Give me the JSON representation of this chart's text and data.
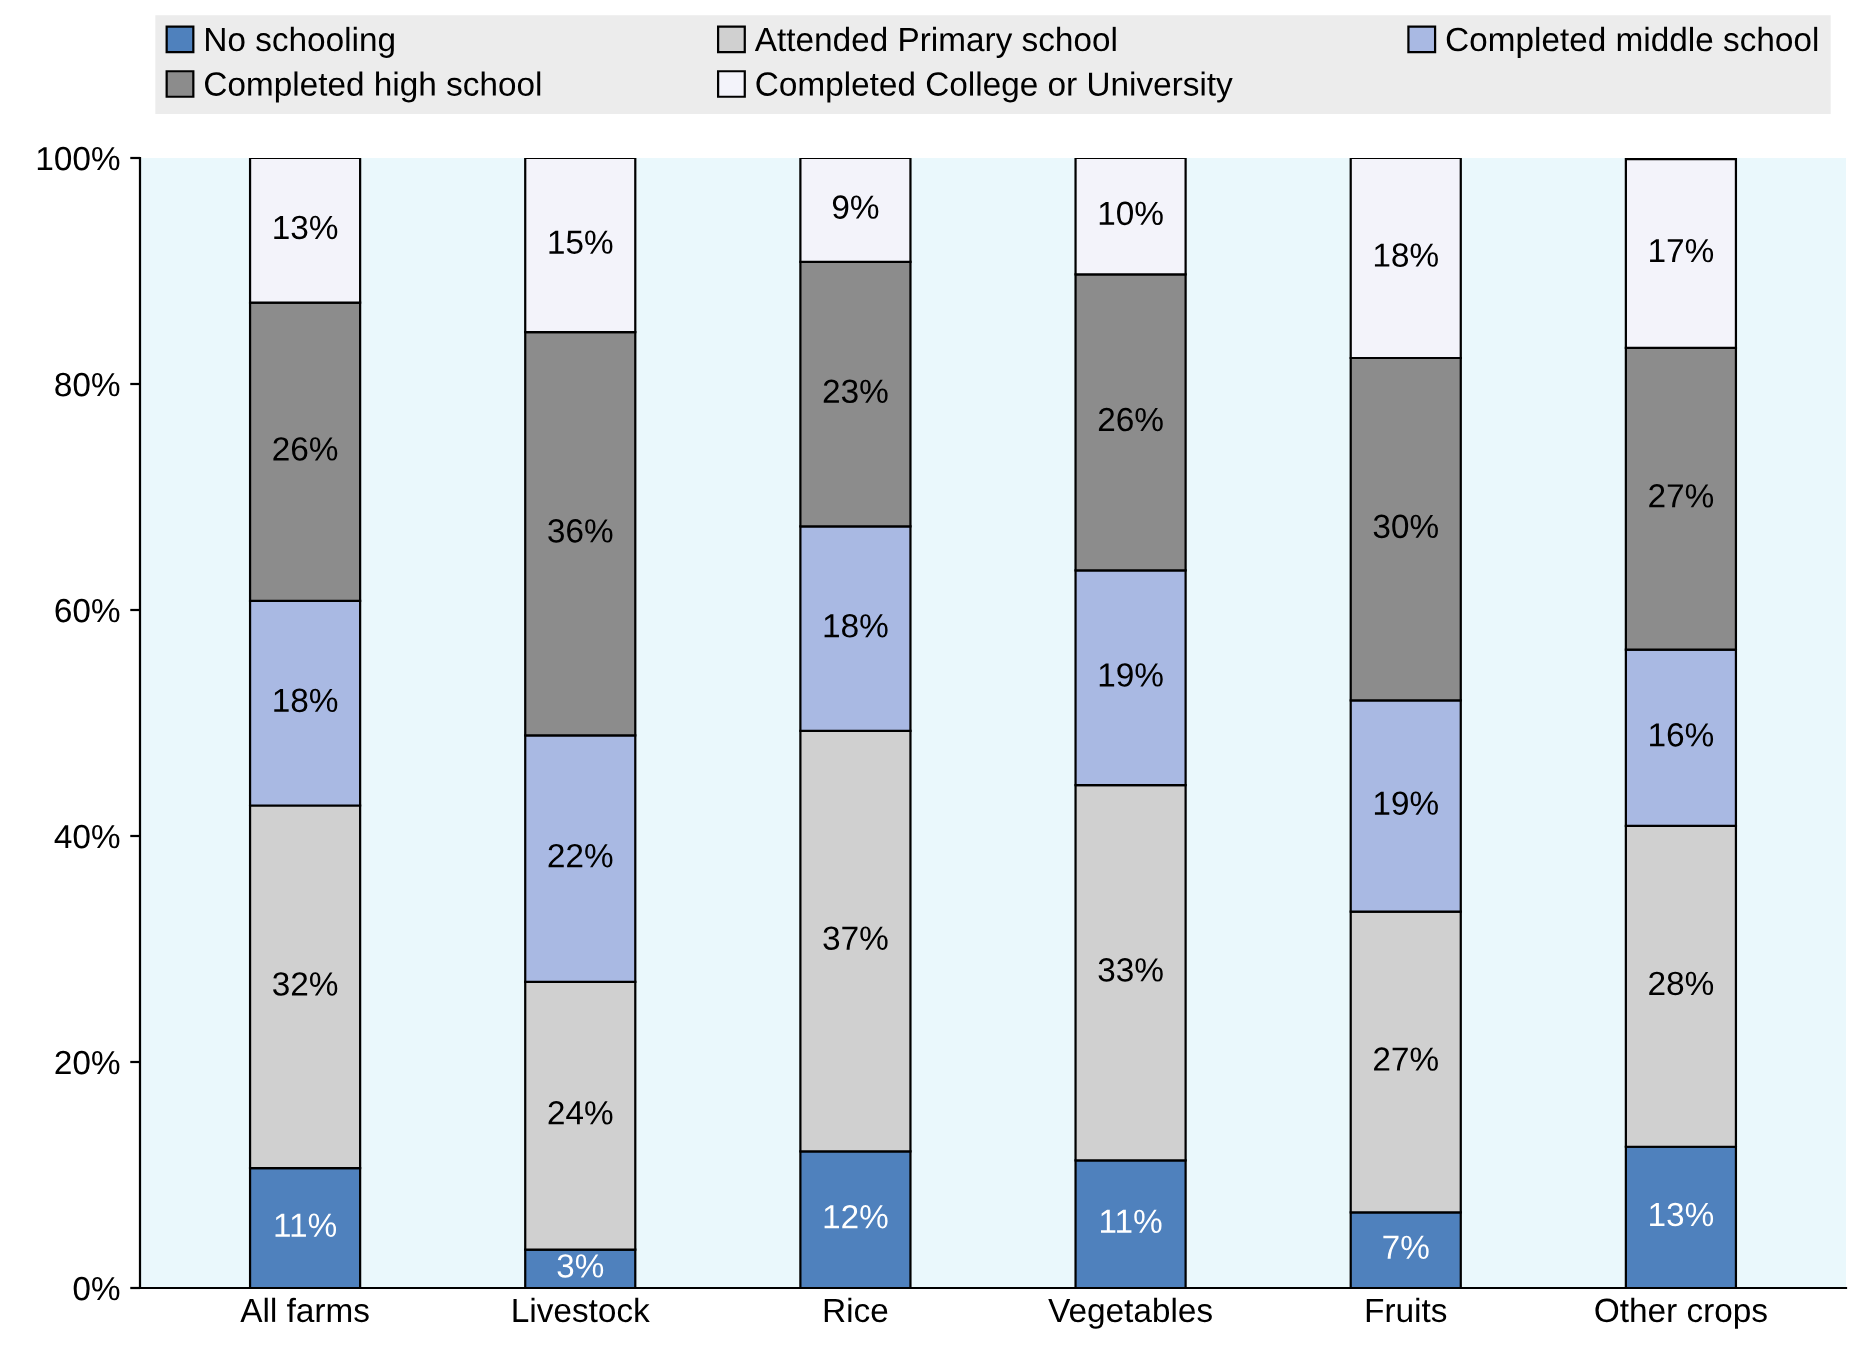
{
  "chart_data": {
    "type": "bar",
    "stacked": true,
    "categories": [
      "All farms",
      "Livestock",
      "Rice",
      "Vegetables",
      "Fruits",
      "Other crops"
    ],
    "series": [
      {
        "name": "No schooling",
        "color": "#4f81bd",
        "values": [
          10.6,
          3.4,
          12.1,
          11.3,
          6.7,
          12.5
        ],
        "value_labels": [
          "11%",
          "3%",
          "12%",
          "11%",
          "7%",
          "13%"
        ]
      },
      {
        "name": "Attended Primary school",
        "color": "#d0d0d0",
        "values": [
          32.1,
          23.7,
          37.2,
          33.2,
          26.6,
          28.4
        ],
        "value_labels": [
          "32%",
          "24%",
          "37%",
          "33%",
          "27%",
          "28%"
        ]
      },
      {
        "name": "Completed middle school",
        "color": "#a9b9e3",
        "values": [
          18.1,
          21.8,
          18.1,
          19.0,
          18.7,
          15.6
        ],
        "value_labels": [
          "18%",
          "22%",
          "18%",
          "19%",
          "19%",
          "16%"
        ]
      },
      {
        "name": "Completed high school",
        "color": "#8c8c8c",
        "values": [
          26.4,
          35.7,
          23.4,
          26.2,
          30.3,
          26.7
        ],
        "value_labels": [
          "26%",
          "36%",
          "23%",
          "26%",
          "30%",
          "27%"
        ]
      },
      {
        "name": "Completed College or University",
        "color": "#f3f3fa",
        "values": [
          12.8,
          15.4,
          9.2,
          10.3,
          17.7,
          16.7
        ],
        "value_labels": [
          "13%",
          "15%",
          "9%",
          "10%",
          "18%",
          "17%"
        ]
      }
    ],
    "ylim": [
      0,
      100
    ],
    "yticks": [
      {
        "value": 0,
        "label": "0%"
      },
      {
        "value": 20,
        "label": "20%"
      },
      {
        "value": 40,
        "label": "40%"
      },
      {
        "value": 60,
        "label": "60%"
      },
      {
        "value": 80,
        "label": "80%"
      },
      {
        "value": 100,
        "label": "100%"
      }
    ],
    "grid": false,
    "legend": "top"
  }
}
